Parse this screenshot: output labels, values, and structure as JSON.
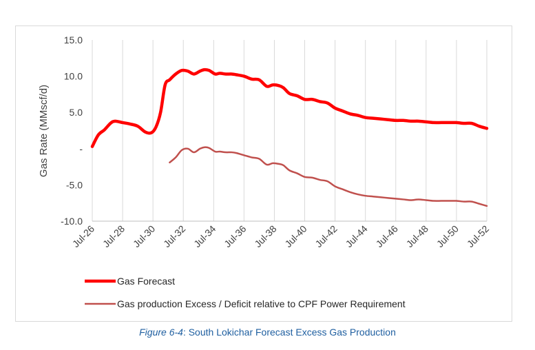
{
  "caption": {
    "figure": "Figure 6-4",
    "text": ": South Lokichar Forecast Excess Gas Production"
  },
  "chart_data": {
    "type": "line",
    "title": "",
    "xlabel": "",
    "ylabel": "Gas Rate (MMscf/d)",
    "ylim": [
      -10,
      15
    ],
    "yticks": [
      15,
      10,
      5,
      0,
      -5,
      -10
    ],
    "ytick_labels": [
      "15.0",
      "10.0",
      "5.0",
      "-",
      "-5.0",
      "-10.0"
    ],
    "xlim": [
      2026.5,
      2052.5
    ],
    "xticks": [
      2026.5,
      2028.5,
      2030.5,
      2032.5,
      2034.5,
      2036.5,
      2038.5,
      2040.5,
      2042.5,
      2044.5,
      2046.5,
      2048.5,
      2050.5,
      2052.5
    ],
    "xtick_labels": [
      "Jul-26",
      "Jul-28",
      "Jul-30",
      "Jul-32",
      "Jul-34",
      "Jul-36",
      "Jul-38",
      "Jul-40",
      "Jul-42",
      "Jul-44",
      "Jul-46",
      "Jul-48",
      "Jul-50",
      "Jul-52"
    ],
    "grid": "vertical",
    "legend_position": "bottom",
    "series": [
      {
        "name": "Gas Forecast",
        "color": "#ff0000",
        "x": [
          2026.5,
          2026.9,
          2027.3,
          2027.7,
          2028.0,
          2028.5,
          2029.0,
          2029.5,
          2030.0,
          2030.4,
          2030.7,
          2031.0,
          2031.3,
          2031.6,
          2032.0,
          2032.4,
          2032.8,
          2033.2,
          2033.6,
          2033.9,
          2034.2,
          2034.6,
          2034.9,
          2035.3,
          2035.7,
          2036.0,
          2036.5,
          2037.0,
          2037.5,
          2038.0,
          2038.4,
          2038.8,
          2039.1,
          2039.5,
          2040.0,
          2040.5,
          2041.0,
          2041.5,
          2042.0,
          2042.5,
          2043.0,
          2043.5,
          2044.0,
          2044.5,
          2045.0,
          2045.5,
          2046.0,
          2046.5,
          2047.0,
          2047.5,
          2048.0,
          2048.5,
          2049.0,
          2049.5,
          2050.0,
          2050.5,
          2051.0,
          2051.5,
          2052.0,
          2052.5
        ],
        "values": [
          0.3,
          1.9,
          2.6,
          3.5,
          3.8,
          3.6,
          3.4,
          3.1,
          2.3,
          2.2,
          3.0,
          5.0,
          8.8,
          9.5,
          10.3,
          10.8,
          10.7,
          10.3,
          10.7,
          10.9,
          10.8,
          10.3,
          10.4,
          10.3,
          10.3,
          10.2,
          10.0,
          9.6,
          9.5,
          8.6,
          8.8,
          8.7,
          8.4,
          7.6,
          7.3,
          6.8,
          6.8,
          6.5,
          6.3,
          5.6,
          5.2,
          4.8,
          4.6,
          4.3,
          4.2,
          4.1,
          4.0,
          3.9,
          3.9,
          3.8,
          3.8,
          3.7,
          3.6,
          3.6,
          3.6,
          3.6,
          3.5,
          3.5,
          3.1,
          2.8
        ]
      },
      {
        "name": "Gas production Excess / Deficit relative to CPF Power Requirement",
        "color": "#c0504d",
        "x": [
          2031.6,
          2032.0,
          2032.4,
          2032.8,
          2033.2,
          2033.6,
          2033.9,
          2034.2,
          2034.6,
          2034.9,
          2035.3,
          2035.7,
          2036.0,
          2036.5,
          2037.0,
          2037.5,
          2038.0,
          2038.4,
          2038.8,
          2039.1,
          2039.5,
          2040.0,
          2040.5,
          2041.0,
          2041.5,
          2042.0,
          2042.5,
          2043.0,
          2043.5,
          2044.0,
          2044.5,
          2045.0,
          2045.5,
          2046.0,
          2046.5,
          2047.0,
          2047.5,
          2048.0,
          2048.5,
          2049.0,
          2049.5,
          2050.0,
          2050.5,
          2051.0,
          2051.5,
          2052.0,
          2052.5
        ],
        "values": [
          -1.9,
          -1.2,
          -0.2,
          0.0,
          -0.5,
          0.0,
          0.2,
          0.1,
          -0.4,
          -0.4,
          -0.5,
          -0.5,
          -0.6,
          -0.9,
          -1.2,
          -1.4,
          -2.2,
          -2.0,
          -2.1,
          -2.3,
          -3.0,
          -3.4,
          -3.9,
          -4.0,
          -4.3,
          -4.5,
          -5.2,
          -5.6,
          -6.0,
          -6.3,
          -6.5,
          -6.6,
          -6.7,
          -6.8,
          -6.9,
          -7.0,
          -7.1,
          -7.0,
          -7.1,
          -7.2,
          -7.2,
          -7.2,
          -7.2,
          -7.3,
          -7.3,
          -7.6,
          -7.9
        ]
      }
    ]
  }
}
